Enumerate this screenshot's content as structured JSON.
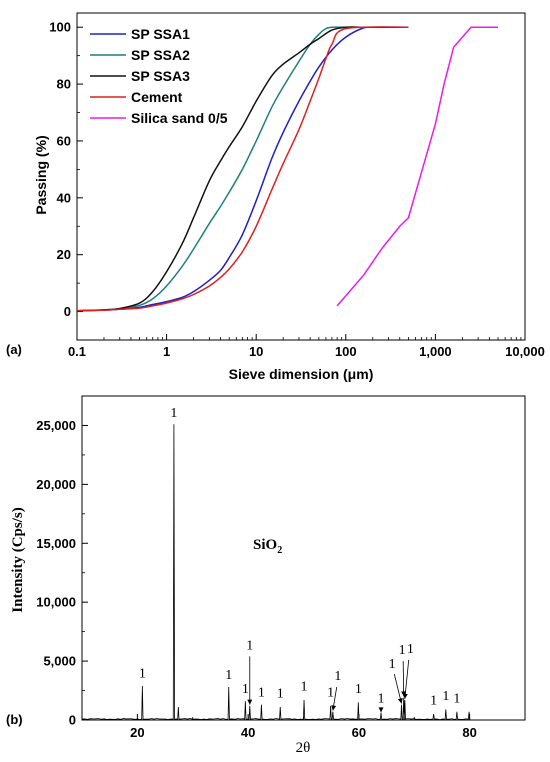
{
  "chart_data": [
    {
      "panel_label": "(a)",
      "type": "line",
      "xlabel": "Sieve dimension (μm)",
      "ylabel": "Passing (%)",
      "xscale": "log",
      "xlim": [
        0.1,
        10000
      ],
      "ylim": [
        -10,
        105
      ],
      "xticks": [
        0.1,
        1,
        10,
        100,
        1000,
        10000
      ],
      "xtick_labels": [
        "0.1",
        "1",
        "10",
        "100",
        "1,000",
        "10,000"
      ],
      "yticks": [
        0,
        20,
        40,
        60,
        80,
        100
      ],
      "ytick_labels": [
        "0",
        "20",
        "40",
        "60",
        "80",
        "100"
      ],
      "legend_position": "top-left",
      "colors": {
        "SP SSA1": "#1f1fcc",
        "SP SSA2": "#1f7f7f",
        "SP SSA3": "#111111",
        "Cement": "#e01f1f",
        "Silica sand 0/5": "#e81ce8"
      },
      "series": [
        {
          "name": "SP SSA1",
          "x": [
            0.1,
            0.2,
            0.3,
            0.5,
            0.7,
            1,
            1.5,
            2,
            3,
            4,
            5,
            7,
            10,
            15,
            20,
            30,
            40,
            50,
            70,
            100,
            150,
            200,
            500
          ],
          "y": [
            0.3,
            0.5,
            0.8,
            1.5,
            2.5,
            3.5,
            5,
            7,
            11,
            14.5,
            19,
            27,
            39,
            54,
            63,
            74,
            81,
            86,
            92,
            96.5,
            99.5,
            100,
            100
          ]
        },
        {
          "name": "SP SSA2",
          "x": [
            0.1,
            0.2,
            0.3,
            0.5,
            0.7,
            1,
            1.5,
            2,
            3,
            4,
            5,
            7,
            10,
            15,
            20,
            30,
            40,
            50,
            60,
            70,
            100,
            200,
            500
          ],
          "y": [
            0.3,
            0.6,
            1.0,
            2.2,
            4.5,
            9,
            16,
            22,
            31,
            37,
            42,
            50,
            60,
            72,
            79,
            88,
            94,
            97.5,
            99.5,
            100,
            100,
            100,
            100
          ]
        },
        {
          "name": "SP SSA3",
          "x": [
            0.1,
            0.2,
            0.3,
            0.5,
            0.7,
            1,
            1.5,
            2,
            3,
            4,
            5,
            7,
            10,
            15,
            20,
            30,
            40,
            50,
            70,
            100,
            150,
            200,
            500
          ],
          "y": [
            0.3,
            0.6,
            1.1,
            3,
            7,
            14,
            24,
            33,
            46,
            53,
            58,
            65,
            74,
            83,
            87,
            91,
            94,
            96,
            99,
            100,
            100,
            100,
            100
          ]
        },
        {
          "name": "Cement",
          "x": [
            0.1,
            0.2,
            0.3,
            0.5,
            0.7,
            1,
            1.5,
            2,
            3,
            4,
            5,
            7,
            10,
            15,
            20,
            30,
            40,
            50,
            60,
            70,
            100,
            500
          ],
          "y": [
            0.3,
            0.5,
            0.8,
            1.2,
            2,
            3,
            4.5,
            6,
            9,
            12,
            15,
            21,
            30,
            43,
            52,
            64,
            74,
            82,
            89,
            94,
            99.5,
            100
          ]
        },
        {
          "name": "Silica sand 0/5",
          "x": [
            80,
            160,
            250,
            400,
            500,
            700,
            1000,
            1250,
            1600,
            2500,
            5000
          ],
          "y": [
            2,
            13,
            22,
            30,
            33,
            49,
            66,
            80,
            93,
            100,
            100
          ]
        }
      ]
    },
    {
      "panel_label": "(b)",
      "type": "line",
      "xlabel": "2θ",
      "ylabel": "Intensity (Cps/s)",
      "annotation": "SiO2",
      "annotation_main": "SiO",
      "annotation_sub": "2",
      "peak_marker": "1",
      "xlim": [
        10,
        90
      ],
      "ylim": [
        0,
        27500
      ],
      "xticks": [
        20,
        40,
        60,
        80
      ],
      "xtick_labels": [
        "20",
        "40",
        "60",
        "80"
      ],
      "yticks": [
        0,
        5000,
        10000,
        15000,
        20000,
        25000
      ],
      "ytick_labels": [
        "0",
        "5,000",
        "10,000",
        "15,000",
        "20,000",
        "25,000"
      ],
      "baseline": 80,
      "x_end": 80,
      "peaks": [
        {
          "x": 20.9,
          "y": 2900
        },
        {
          "x": 26.6,
          "y": 25100
        },
        {
          "x": 27.4,
          "y": 1100
        },
        {
          "x": 36.5,
          "y": 2800
        },
        {
          "x": 39.5,
          "y": 1600
        },
        {
          "x": 40.3,
          "y": 1200
        },
        {
          "x": 42.4,
          "y": 1300
        },
        {
          "x": 45.8,
          "y": 1100
        },
        {
          "x": 50.1,
          "y": 1700
        },
        {
          "x": 54.9,
          "y": 1200
        },
        {
          "x": 55.3,
          "y": 700
        },
        {
          "x": 59.9,
          "y": 1500
        },
        {
          "x": 64.0,
          "y": 600
        },
        {
          "x": 67.7,
          "y": 1300
        },
        {
          "x": 68.1,
          "y": 1900
        },
        {
          "x": 68.3,
          "y": 1700
        },
        {
          "x": 73.5,
          "y": 500
        },
        {
          "x": 75.7,
          "y": 900
        },
        {
          "x": 77.7,
          "y": 700
        },
        {
          "x": 79.9,
          "y": 700
        }
      ]
    }
  ]
}
